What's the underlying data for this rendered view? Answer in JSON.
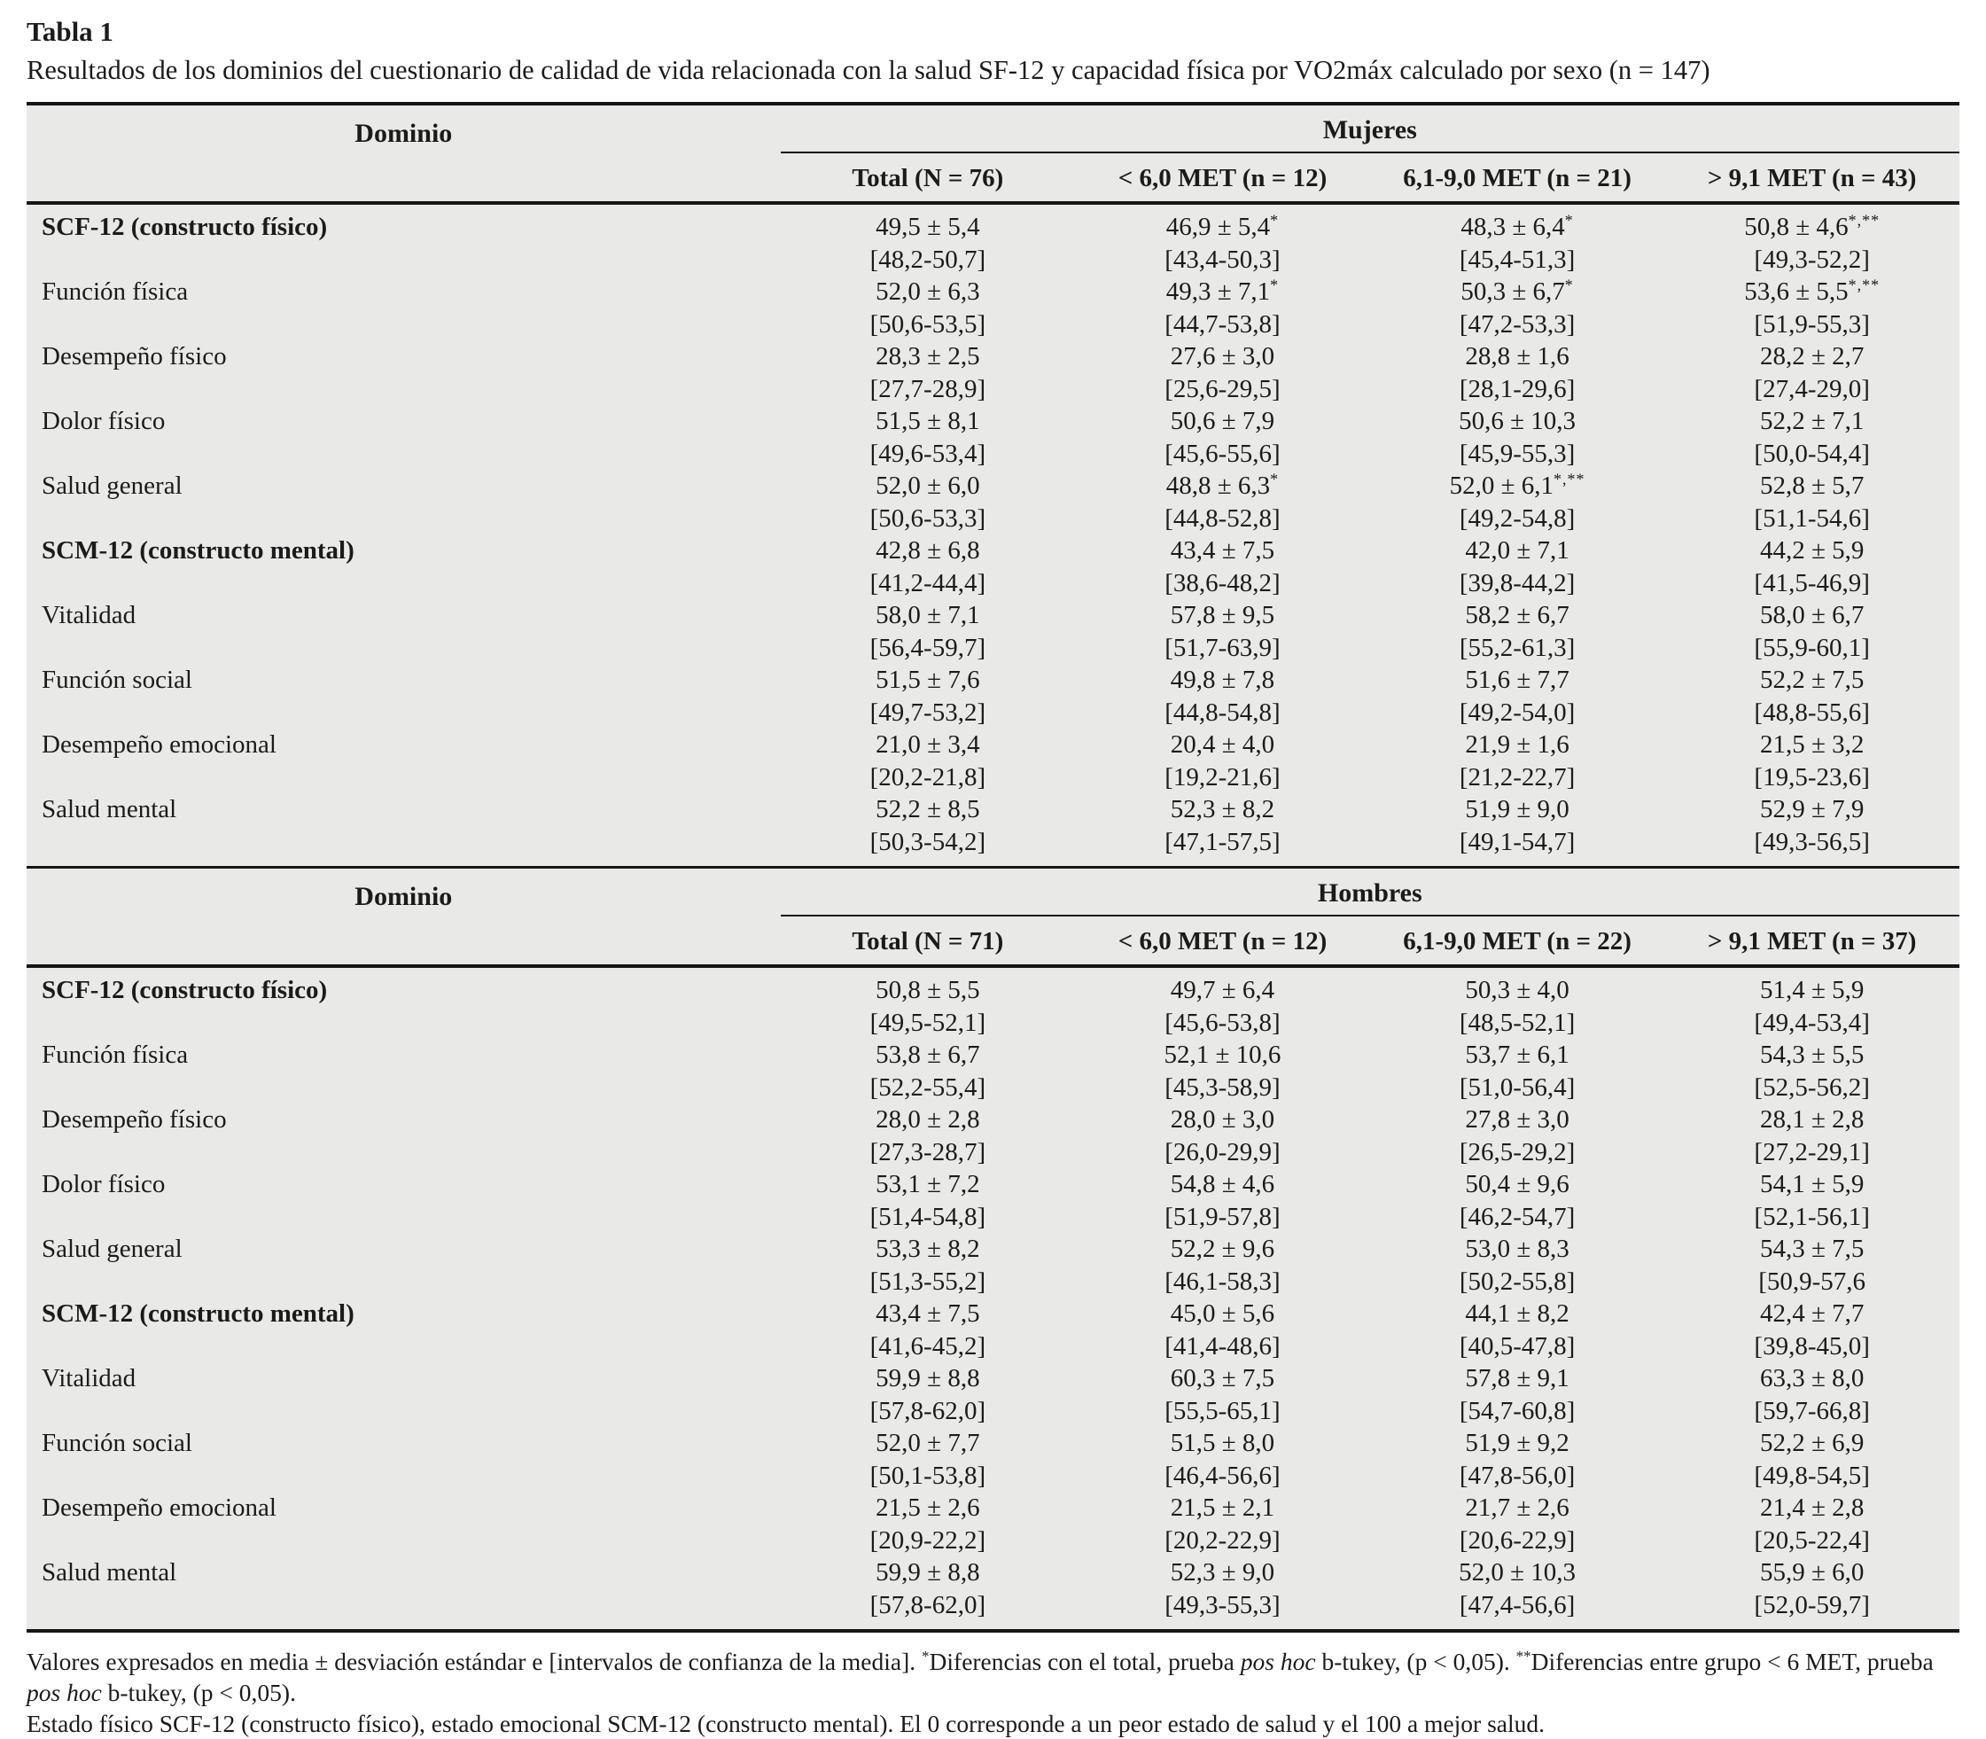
{
  "title": "Tabla 1",
  "subtitle": "Resultados de los dominios del cuestionario de calidad de vida relacionada con la salud SF-12 y capacidad física por VO2máx calculado por sexo (n = 147)",
  "colors": {
    "table_background": "#e9e9e8",
    "rule": "#161616",
    "text": "#1b1b1b"
  },
  "sections": [
    {
      "id": "mujeres",
      "domain_header": "Dominio",
      "group_header": "Mujeres",
      "columns": [
        "Total (N = 76)",
        "< 6,0 MET (n = 12)",
        "6,1-9,0 MET (n = 21)",
        "> 9,1 MET (n = 43)"
      ],
      "rows": [
        {
          "label": "SCF-12 (constructo físico)",
          "bold": true,
          "cells": [
            {
              "mean": "49,5 ± 5,4",
              "sup": "",
              "ci": "[48,2-50,7]"
            },
            {
              "mean": "46,9 ± 5,4",
              "sup": "*",
              "ci": "[43,4-50,3]"
            },
            {
              "mean": "48,3 ± 6,4",
              "sup": "*",
              "ci": "[45,4-51,3]"
            },
            {
              "mean": "50,8 ± 4,6",
              "sup": "*,**",
              "ci": "[49,3-52,2]"
            }
          ]
        },
        {
          "label": "Función física",
          "bold": false,
          "cells": [
            {
              "mean": "52,0 ± 6,3",
              "sup": "",
              "ci": "[50,6-53,5]"
            },
            {
              "mean": "49,3 ± 7,1",
              "sup": "*",
              "ci": "[44,7-53,8]"
            },
            {
              "mean": "50,3 ± 6,7",
              "sup": "*",
              "ci": "[47,2-53,3]"
            },
            {
              "mean": "53,6 ± 5,5",
              "sup": "*,**",
              "ci": "[51,9-55,3]"
            }
          ]
        },
        {
          "label": "Desempeño físico",
          "bold": false,
          "cells": [
            {
              "mean": "28,3 ± 2,5",
              "sup": "",
              "ci": "[27,7-28,9]"
            },
            {
              "mean": "27,6 ± 3,0",
              "sup": "",
              "ci": "[25,6-29,5]"
            },
            {
              "mean": "28,8 ± 1,6",
              "sup": "",
              "ci": "[28,1-29,6]"
            },
            {
              "mean": "28,2 ± 2,7",
              "sup": "",
              "ci": "[27,4-29,0]"
            }
          ]
        },
        {
          "label": "Dolor físico",
          "bold": false,
          "cells": [
            {
              "mean": "51,5 ± 8,1",
              "sup": "",
              "ci": "[49,6-53,4]"
            },
            {
              "mean": "50,6 ± 7,9",
              "sup": "",
              "ci": "[45,6-55,6]"
            },
            {
              "mean": "50,6 ± 10,3",
              "sup": "",
              "ci": "[45,9-55,3]"
            },
            {
              "mean": "52,2 ± 7,1",
              "sup": "",
              "ci": "[50,0-54,4]"
            }
          ]
        },
        {
          "label": "Salud general",
          "bold": false,
          "cells": [
            {
              "mean": "52,0 ± 6,0",
              "sup": "",
              "ci": "[50,6-53,3]"
            },
            {
              "mean": "48,8 ± 6,3",
              "sup": "*",
              "ci": "[44,8-52,8]"
            },
            {
              "mean": "52,0 ± 6,1",
              "sup": "*,**",
              "ci": "[49,2-54,8]"
            },
            {
              "mean": "52,8 ± 5,7",
              "sup": "",
              "ci": "[51,1-54,6]"
            }
          ]
        },
        {
          "label": "SCM-12 (constructo mental)",
          "bold": true,
          "cells": [
            {
              "mean": "42,8 ± 6,8",
              "sup": "",
              "ci": "[41,2-44,4]"
            },
            {
              "mean": "43,4 ± 7,5",
              "sup": "",
              "ci": "[38,6-48,2]"
            },
            {
              "mean": "42,0 ± 7,1",
              "sup": "",
              "ci": "[39,8-44,2]"
            },
            {
              "mean": "44,2 ± 5,9",
              "sup": "",
              "ci": "[41,5-46,9]"
            }
          ]
        },
        {
          "label": "Vitalidad",
          "bold": false,
          "cells": [
            {
              "mean": "58,0 ± 7,1",
              "sup": "",
              "ci": "[56,4-59,7]"
            },
            {
              "mean": "57,8 ± 9,5",
              "sup": "",
              "ci": "[51,7-63,9]"
            },
            {
              "mean": "58,2 ± 6,7",
              "sup": "",
              "ci": "[55,2-61,3]"
            },
            {
              "mean": "58,0 ± 6,7",
              "sup": "",
              "ci": "[55,9-60,1]"
            }
          ]
        },
        {
          "label": "Función social",
          "bold": false,
          "cells": [
            {
              "mean": "51,5 ± 7,6",
              "sup": "",
              "ci": "[49,7-53,2]"
            },
            {
              "mean": "49,8 ± 7,8",
              "sup": "",
              "ci": "[44,8-54,8]"
            },
            {
              "mean": "51,6 ± 7,7",
              "sup": "",
              "ci": "[49,2-54,0]"
            },
            {
              "mean": "52,2 ± 7,5",
              "sup": "",
              "ci": "[48,8-55,6]"
            }
          ]
        },
        {
          "label": "Desempeño emocional",
          "bold": false,
          "cells": [
            {
              "mean": "21,0 ± 3,4",
              "sup": "",
              "ci": "[20,2-21,8]"
            },
            {
              "mean": "20,4 ± 4,0",
              "sup": "",
              "ci": "[19,2-21,6]"
            },
            {
              "mean": "21,9 ± 1,6",
              "sup": "",
              "ci": "[21,2-22,7]"
            },
            {
              "mean": "21,5 ± 3,2",
              "sup": "",
              "ci": "[19,5-23,6]"
            }
          ]
        },
        {
          "label": "Salud mental",
          "bold": false,
          "cells": [
            {
              "mean": "52,2 ± 8,5",
              "sup": "",
              "ci": "[50,3-54,2]"
            },
            {
              "mean": "52,3 ± 8,2",
              "sup": "",
              "ci": "[47,1-57,5]"
            },
            {
              "mean": "51,9 ± 9,0",
              "sup": "",
              "ci": "[49,1-54,7]"
            },
            {
              "mean": "52,9 ± 7,9",
              "sup": "",
              "ci": "[49,3-56,5]"
            }
          ]
        }
      ]
    },
    {
      "id": "hombres",
      "domain_header": "Dominio",
      "group_header": "Hombres",
      "columns": [
        "Total (N = 71)",
        "< 6,0 MET (n = 12)",
        "6,1-9,0 MET (n = 22)",
        "> 9,1 MET (n = 37)"
      ],
      "rows": [
        {
          "label": "SCF-12 (constructo físico)",
          "bold": true,
          "cells": [
            {
              "mean": "50,8 ± 5,5",
              "sup": "",
              "ci": "[49,5-52,1]"
            },
            {
              "mean": "49,7 ± 6,4",
              "sup": "",
              "ci": "[45,6-53,8]"
            },
            {
              "mean": "50,3 ± 4,0",
              "sup": "",
              "ci": "[48,5-52,1]"
            },
            {
              "mean": "51,4 ± 5,9",
              "sup": "",
              "ci": "[49,4-53,4]"
            }
          ]
        },
        {
          "label": "Función física",
          "bold": false,
          "cells": [
            {
              "mean": "53,8 ± 6,7",
              "sup": "",
              "ci": "[52,2-55,4]"
            },
            {
              "mean": "52,1 ± 10,6",
              "sup": "",
              "ci": "[45,3-58,9]"
            },
            {
              "mean": "53,7 ± 6,1",
              "sup": "",
              "ci": "[51,0-56,4]"
            },
            {
              "mean": "54,3 ± 5,5",
              "sup": "",
              "ci": "[52,5-56,2]"
            }
          ]
        },
        {
          "label": "Desempeño físico",
          "bold": false,
          "cells": [
            {
              "mean": "28,0 ± 2,8",
              "sup": "",
              "ci": "[27,3-28,7]"
            },
            {
              "mean": "28,0 ± 3,0",
              "sup": "",
              "ci": "[26,0-29,9]"
            },
            {
              "mean": "27,8 ± 3,0",
              "sup": "",
              "ci": "[26,5-29,2]"
            },
            {
              "mean": "28,1 ± 2,8",
              "sup": "",
              "ci": "[27,2-29,1]"
            }
          ]
        },
        {
          "label": "Dolor físico",
          "bold": false,
          "cells": [
            {
              "mean": "53,1 ± 7,2",
              "sup": "",
              "ci": "[51,4-54,8]"
            },
            {
              "mean": "54,8 ± 4,6",
              "sup": "",
              "ci": "[51,9-57,8]"
            },
            {
              "mean": "50,4 ± 9,6",
              "sup": "",
              "ci": "[46,2-54,7]"
            },
            {
              "mean": "54,1 ± 5,9",
              "sup": "",
              "ci": "[52,1-56,1]"
            }
          ]
        },
        {
          "label": "Salud general",
          "bold": false,
          "cells": [
            {
              "mean": "53,3 ± 8,2",
              "sup": "",
              "ci": "[51,3-55,2]"
            },
            {
              "mean": "52,2 ± 9,6",
              "sup": "",
              "ci": "[46,1-58,3]"
            },
            {
              "mean": "53,0 ± 8,3",
              "sup": "",
              "ci": "[50,2-55,8]"
            },
            {
              "mean": "54,3 ± 7,5",
              "sup": "",
              "ci": "[50,9-57,6"
            }
          ]
        },
        {
          "label": "SCM-12 (constructo mental)",
          "bold": true,
          "cells": [
            {
              "mean": "43,4 ± 7,5",
              "sup": "",
              "ci": "[41,6-45,2]"
            },
            {
              "mean": "45,0 ± 5,6",
              "sup": "",
              "ci": "[41,4-48,6]"
            },
            {
              "mean": "44,1 ± 8,2",
              "sup": "",
              "ci": "[40,5-47,8]"
            },
            {
              "mean": "42,4 ± 7,7",
              "sup": "",
              "ci": "[39,8-45,0]"
            }
          ]
        },
        {
          "label": "Vitalidad",
          "bold": false,
          "cells": [
            {
              "mean": "59,9 ± 8,8",
              "sup": "",
              "ci": "[57,8-62,0]"
            },
            {
              "mean": "60,3 ± 7,5",
              "sup": "",
              "ci": "[55,5-65,1]"
            },
            {
              "mean": "57,8 ± 9,1",
              "sup": "",
              "ci": "[54,7-60,8]"
            },
            {
              "mean": "63,3 ± 8,0",
              "sup": "",
              "ci": "[59,7-66,8]"
            }
          ]
        },
        {
          "label": "Función social",
          "bold": false,
          "cells": [
            {
              "mean": "52,0 ± 7,7",
              "sup": "",
              "ci": "[50,1-53,8]"
            },
            {
              "mean": "51,5 ± 8,0",
              "sup": "",
              "ci": "[46,4-56,6]"
            },
            {
              "mean": "51,9 ± 9,2",
              "sup": "",
              "ci": "[47,8-56,0]"
            },
            {
              "mean": "52,2 ± 6,9",
              "sup": "",
              "ci": "[49,8-54,5]"
            }
          ]
        },
        {
          "label": "Desempeño emocional",
          "bold": false,
          "cells": [
            {
              "mean": "21,5 ± 2,6",
              "sup": "",
              "ci": "[20,9-22,2]"
            },
            {
              "mean": "21,5 ± 2,1",
              "sup": "",
              "ci": "[20,2-22,9]"
            },
            {
              "mean": "21,7 ± 2,6",
              "sup": "",
              "ci": "[20,6-22,9]"
            },
            {
              "mean": "21,4 ± 2,8",
              "sup": "",
              "ci": "[20,5-22,4]"
            }
          ]
        },
        {
          "label": "Salud mental",
          "bold": false,
          "cells": [
            {
              "mean": "59,9 ± 8,8",
              "sup": "",
              "ci": "[57,8-62,0]"
            },
            {
              "mean": "52,3 ± 9,0",
              "sup": "",
              "ci": "[49,3-55,3]"
            },
            {
              "mean": "52,0 ± 10,3",
              "sup": "",
              "ci": "[47,4-56,6]"
            },
            {
              "mean": "55,9 ± 6,0",
              "sup": "",
              "ci": "[52,0-59,7]"
            }
          ]
        }
      ]
    }
  ],
  "footnotes": [
    {
      "parts": [
        {
          "t": "Valores expresados en media ± desviación estándar e [intervalos de confianza de la media]. "
        },
        {
          "t": "*",
          "sup": true
        },
        {
          "t": "Diferencias con el total, prueba "
        },
        {
          "t": "pos hoc",
          "italic": true
        },
        {
          "t": " b-tukey, (p < 0,05). "
        },
        {
          "t": "**",
          "sup": true
        },
        {
          "t": "Diferencias entre grupo < 6 MET, prueba "
        },
        {
          "t": "pos hoc",
          "italic": true
        },
        {
          "t": " b-tukey, (p < 0,05)."
        }
      ]
    },
    {
      "text": "Estado físico SCF-12 (constructo físico), estado emocional SCM-12 (constructo mental). El 0 corresponde a un peor estado de salud y el 100 a mejor salud."
    }
  ]
}
